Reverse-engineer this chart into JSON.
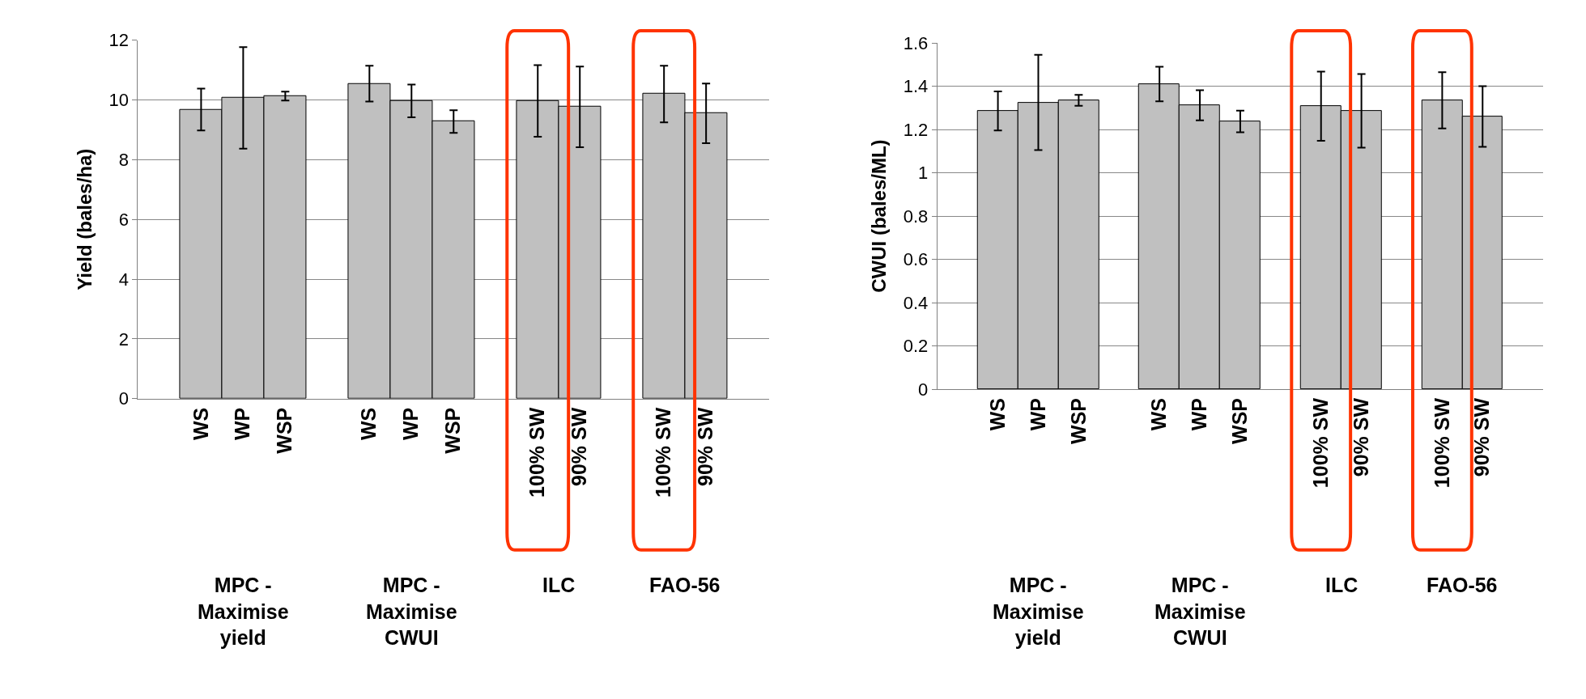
{
  "chart_data": [
    {
      "type": "bar",
      "ylabel": "Yield (bales/ha)",
      "categories": [
        null,
        "WS",
        "WP",
        "WSP",
        null,
        "WS",
        "WP",
        "WSP",
        null,
        "100% SW",
        "90% SW",
        null,
        "100% SW",
        "90% SW",
        null
      ],
      "values": [
        null,
        9.68,
        10.07,
        10.13,
        null,
        10.55,
        9.97,
        9.28,
        null,
        9.97,
        9.77,
        null,
        10.2,
        9.55,
        null
      ],
      "errors": [
        null,
        0.7,
        1.7,
        0.15,
        null,
        0.6,
        0.55,
        0.38,
        null,
        1.2,
        1.35,
        null,
        0.95,
        1.0,
        null
      ],
      "color": "#c0c0c0",
      "ylim": [
        0,
        12
      ],
      "yticks": [
        0,
        2,
        4,
        6,
        8,
        10,
        12
      ],
      "grid": "y",
      "annotations": [
        "MPC -\nMaximise\nyield",
        "MPC -\nMaximise\nCWUI",
        "ILC",
        "FAO-56"
      ]
    },
    {
      "type": "bar",
      "ylabel": "CWUI (bales/ML)",
      "categories": [
        null,
        "WS",
        "WP",
        "WSP",
        null,
        "WS",
        "WP",
        "WSP",
        null,
        "100% SW",
        "90% SW",
        null,
        "100% SW",
        "90% SW",
        null
      ],
      "values": [
        null,
        1.286,
        1.325,
        1.335,
        null,
        1.41,
        1.312,
        1.237,
        null,
        1.308,
        1.286,
        null,
        1.335,
        1.26,
        null
      ],
      "errors": [
        null,
        0.09,
        0.22,
        0.025,
        null,
        0.08,
        0.07,
        0.05,
        null,
        0.16,
        0.17,
        null,
        0.13,
        0.14,
        null
      ],
      "color": "#c0c0c0",
      "ylim": [
        0,
        1.6
      ],
      "yticks": [
        0,
        0.2,
        0.4,
        0.6,
        0.8,
        1,
        1.2,
        1.4,
        1.6
      ],
      "grid": "y",
      "annotations": [
        "MPC -\nMaximise\nyield",
        "MPC -\nMaximise\nCWUI",
        "ILC",
        "FAO-56"
      ]
    }
  ]
}
